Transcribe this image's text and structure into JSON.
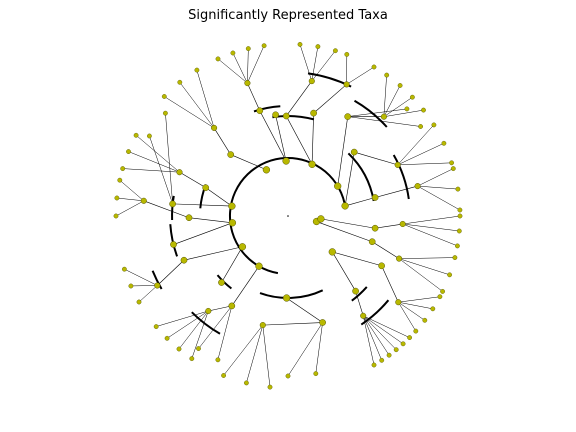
{
  "figure": {
    "title": "Significantly Represented Taxa",
    "type": "circular phylogenetic tree (cladogram)",
    "colors": {
      "node_fill": "#b8b800",
      "node_stroke": "#555500",
      "edge": "#000000",
      "background": "#ffffff"
    }
  }
}
